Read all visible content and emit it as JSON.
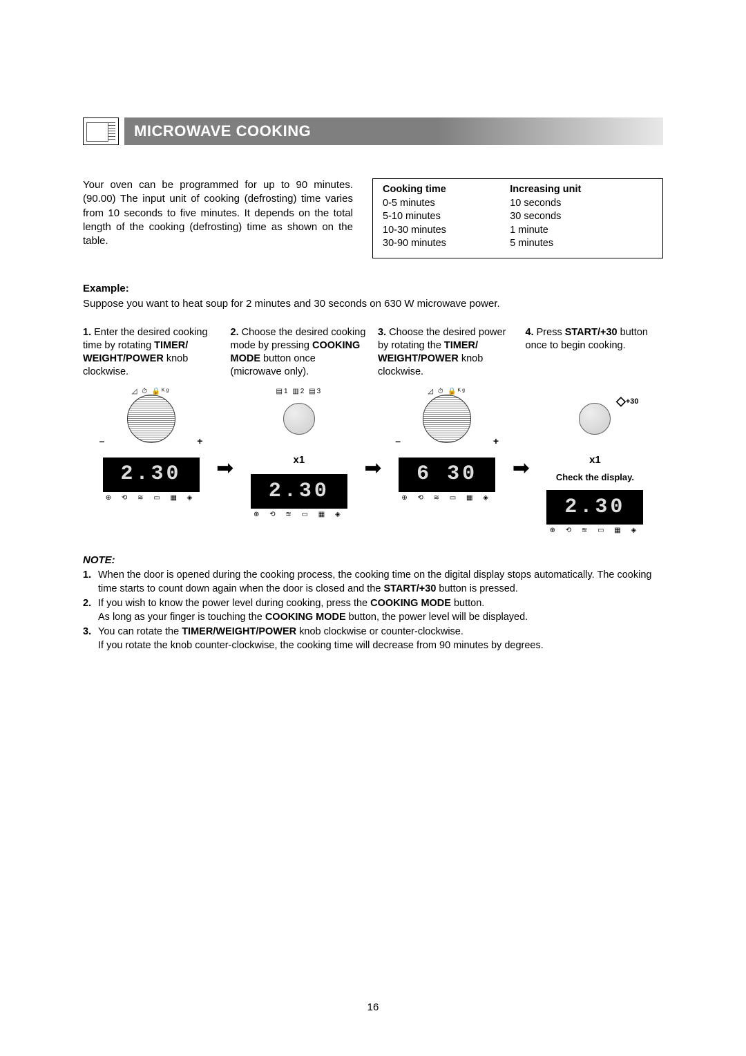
{
  "header": {
    "title": "MICROWAVE COOKING"
  },
  "intro": {
    "text": "Your oven can be programmed for up to 90 minutes. (90.00) The input unit of cooking (defrosting) time varies from 10 seconds to five minutes. It depends on the total length of the cooking (defrosting) time as shown on the table."
  },
  "table": {
    "col1_header": "Cooking time",
    "col2_header": "Increasing unit",
    "rows": [
      {
        "time": "0-5 minutes",
        "unit": "10 seconds"
      },
      {
        "time": "5-10 minutes",
        "unit": "30 seconds"
      },
      {
        "time": "10-30 minutes",
        "unit": "1 minute"
      },
      {
        "time": "30-90 minutes",
        "unit": "5 minutes"
      }
    ]
  },
  "example": {
    "label": "Example:",
    "text": "Suppose you want to heat soup for 2 minutes and 30 seconds on 630 W microwave power."
  },
  "steps": [
    {
      "n": "1.",
      "pre": "Enter the desired cooking time by rotating ",
      "bold": "TIMER/ WEIGHT/POWER",
      "post": " knob clockwise."
    },
    {
      "n": "2.",
      "pre": "Choose the desired cooking mode by pressing ",
      "bold": "COOKING MODE",
      "post": " button once (microwave only)."
    },
    {
      "n": "3.",
      "pre": "Choose the desired power by rotating the ",
      "bold": "TIMER/ WEIGHT/POWER",
      "post": " knob clockwise."
    },
    {
      "n": "4.",
      "pre": "Press ",
      "bold": "START/+30",
      "post": " button once to begin cooking."
    }
  ],
  "diagrams": {
    "d1": {
      "top_icons": "◿ ⏱ 🔒ᴷᵍ",
      "display": "2.30",
      "minus": "–",
      "plus": "+"
    },
    "d2": {
      "top_icons": "▤1 ▥2 ▤3",
      "display": "2.30",
      "x1": "x1"
    },
    "d3": {
      "top_icons": "◿ ⏱ 🔒ᴷᵍ",
      "display": "6 30",
      "minus": "–",
      "plus": "+"
    },
    "d4": {
      "top_icons": "◇+30",
      "display": "2.30",
      "x1": "x1",
      "check": "Check the display."
    },
    "bottom_icons": "⊕ ⟲ ≋ ▭ ▦ ◈"
  },
  "notes": {
    "label": "NOTE:",
    "items": [
      {
        "n": "1.",
        "parts": [
          "When the door is opened during the cooking process, the cooking time on the digital display stops automatically.  The cooking time starts to count down again when the door is closed and the ",
          "START/+30",
          " button is pressed."
        ]
      },
      {
        "n": "2.",
        "parts": [
          "If you wish to know the power level during cooking, press the ",
          "COOKING MODE",
          " button.\nAs long as your finger is touching the ",
          "COOKING MODE",
          " button, the power level will be displayed."
        ]
      },
      {
        "n": "3.",
        "parts": [
          "You can rotate the ",
          "TIMER/WEIGHT/POWER",
          " knob clockwise or counter-clockwise.\nIf you rotate the knob counter-clockwise, the cooking time will decrease from 90 minutes by degrees."
        ]
      }
    ]
  },
  "page_number": "16"
}
